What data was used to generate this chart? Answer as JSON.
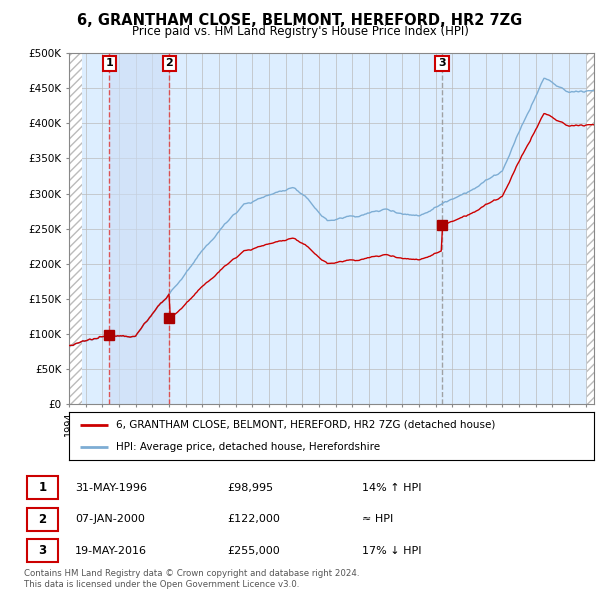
{
  "title": "6, GRANTHAM CLOSE, BELMONT, HEREFORD, HR2 7ZG",
  "subtitle": "Price paid vs. HM Land Registry's House Price Index (HPI)",
  "ylim": [
    0,
    500000
  ],
  "yticks": [
    0,
    50000,
    100000,
    150000,
    200000,
    250000,
    300000,
    350000,
    400000,
    450000,
    500000
  ],
  "ytick_labels": [
    "£0",
    "£50K",
    "£100K",
    "£150K",
    "£200K",
    "£250K",
    "£300K",
    "£350K",
    "£400K",
    "£450K",
    "£500K"
  ],
  "xlim_start": 1994.0,
  "xlim_end": 2025.5,
  "hatch_left_end": 1994.75,
  "hatch_right_start": 2025.08,
  "sales": [
    {
      "date_num": 1996.42,
      "price": 98995,
      "label": "1",
      "vline_style": "dashed_red"
    },
    {
      "date_num": 2000.02,
      "price": 122000,
      "label": "2",
      "vline_style": "dashed_red"
    },
    {
      "date_num": 2016.38,
      "price": 255000,
      "label": "3",
      "vline_style": "dashed_grey"
    }
  ],
  "legend_line1": "6, GRANTHAM CLOSE, BELMONT, HEREFORD, HR2 7ZG (detached house)",
  "legend_line2": "HPI: Average price, detached house, Herefordshire",
  "table_rows": [
    {
      "num": "1",
      "date": "31-MAY-1996",
      "price": "£98,995",
      "hpi": "14% ↑ HPI"
    },
    {
      "num": "2",
      "date": "07-JAN-2000",
      "price": "£122,000",
      "hpi": "≈ HPI"
    },
    {
      "num": "3",
      "date": "19-MAY-2016",
      "price": "£255,000",
      "hpi": "17% ↓ HPI"
    }
  ],
  "footer": "Contains HM Land Registry data © Crown copyright and database right 2024.\nThis data is licensed under the Open Government Licence v3.0.",
  "price_line_color": "#cc0000",
  "hpi_line_color": "#7dadd4",
  "hatch_color": "#bbbbbb",
  "bg_color": "#ddeeff",
  "grid_color": "#bbbbbb",
  "sale_marker_color": "#aa0000",
  "vline_red_color": "#dd4444",
  "vline_grey_color": "#999999",
  "shade_between_sales_color": "#ccddf5"
}
